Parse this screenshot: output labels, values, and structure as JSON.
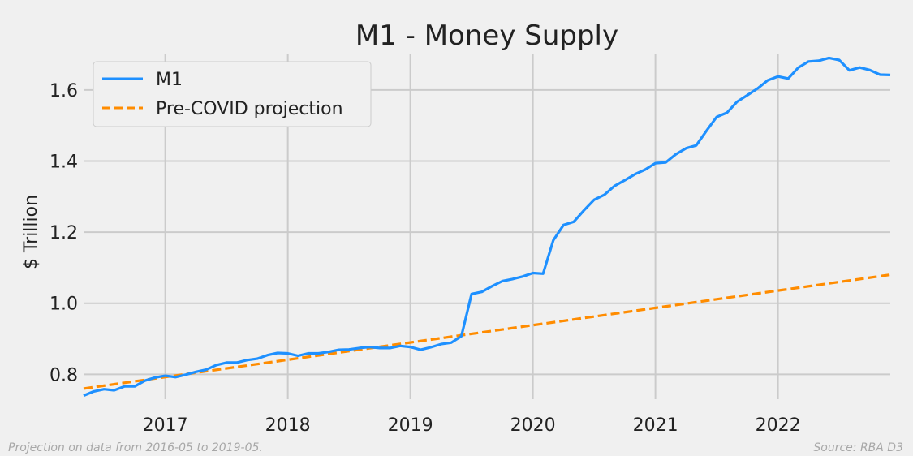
{
  "chart_data": {
    "type": "line",
    "title": "M1 - Money Supply",
    "xlabel": "",
    "ylabel": "$ Trillion",
    "xlim": [
      "2016-05",
      "2022-12"
    ],
    "ylim": [
      0.73,
      1.7
    ],
    "x_ticks": [
      "2017",
      "2018",
      "2019",
      "2020",
      "2021",
      "2022"
    ],
    "y_ticks": [
      "0.8",
      "1.0",
      "1.2",
      "1.4",
      "1.6"
    ],
    "grid": true,
    "legend_position": "top-left",
    "series": [
      {
        "name": "M1",
        "color": "#1e90ff",
        "style": "solid",
        "dates": [
          "2016-05",
          "2016-06",
          "2016-07",
          "2016-08",
          "2016-09",
          "2016-10",
          "2016-11",
          "2016-12",
          "2017-01",
          "2017-02",
          "2017-03",
          "2017-04",
          "2017-05",
          "2017-06",
          "2017-07",
          "2017-08",
          "2017-09",
          "2017-10",
          "2017-11",
          "2017-12",
          "2018-01",
          "2018-02",
          "2018-03",
          "2018-04",
          "2018-05",
          "2018-06",
          "2018-07",
          "2018-08",
          "2018-09",
          "2018-10",
          "2018-11",
          "2018-12",
          "2019-01",
          "2019-02",
          "2019-03",
          "2019-04",
          "2019-05",
          "2019-06",
          "2019-07",
          "2019-08",
          "2019-09",
          "2019-10",
          "2019-11",
          "2019-12",
          "2020-01",
          "2020-02",
          "2020-03",
          "2020-04",
          "2020-05",
          "2020-06",
          "2020-07",
          "2020-08",
          "2020-09",
          "2020-10",
          "2020-11",
          "2020-12",
          "2021-01",
          "2021-02",
          "2021-03",
          "2021-04",
          "2021-05",
          "2021-06",
          "2021-07",
          "2021-08",
          "2021-09",
          "2021-10",
          "2021-11",
          "2021-12",
          "2022-01",
          "2022-02",
          "2022-03",
          "2022-04",
          "2022-05",
          "2022-06",
          "2022-07",
          "2022-08",
          "2022-09",
          "2022-10",
          "2022-11",
          "2022-12"
        ],
        "values": [
          0.74,
          0.752,
          0.758,
          0.755,
          0.766,
          0.766,
          0.782,
          0.791,
          0.796,
          0.792,
          0.799,
          0.807,
          0.813,
          0.826,
          0.833,
          0.833,
          0.84,
          0.844,
          0.854,
          0.86,
          0.859,
          0.852,
          0.859,
          0.859,
          0.863,
          0.869,
          0.87,
          0.874,
          0.877,
          0.874,
          0.874,
          0.88,
          0.877,
          0.869,
          0.876,
          0.885,
          0.889,
          0.907,
          1.026,
          1.032,
          1.048,
          1.062,
          1.068,
          1.075,
          1.085,
          1.083,
          1.177,
          1.22,
          1.229,
          1.261,
          1.291,
          1.305,
          1.33,
          1.346,
          1.363,
          1.376,
          1.394,
          1.396,
          1.419,
          1.436,
          1.444,
          1.485,
          1.524,
          1.536,
          1.567,
          1.585,
          1.604,
          1.627,
          1.638,
          1.632,
          1.663,
          1.68,
          1.682,
          1.69,
          1.684,
          1.655,
          1.663,
          1.656,
          1.643,
          1.642
        ]
      },
      {
        "name": "Pre-COVID projection",
        "color": "#ff8c00",
        "style": "dashed",
        "dates": [
          "2016-05",
          "2022-12"
        ],
        "values": [
          0.76,
          1.08
        ]
      }
    ]
  },
  "footnotes": {
    "left": "Projection on data from 2016-05 to 2019-05.",
    "right": "Source: RBA D3"
  }
}
